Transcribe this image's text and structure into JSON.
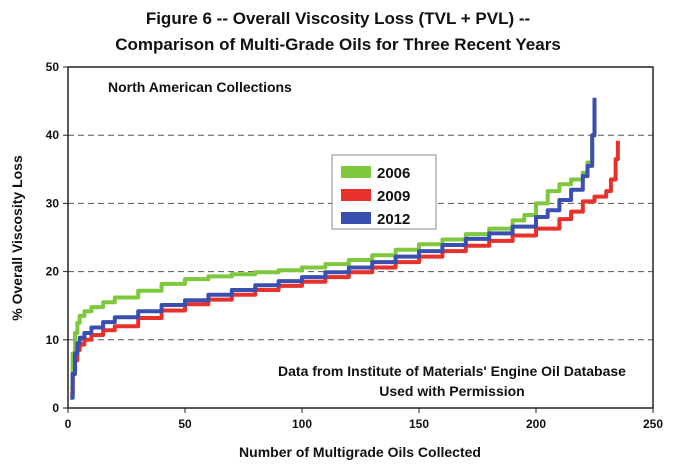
{
  "chart_data": {
    "type": "line",
    "title_lines": [
      "Figure 6 -- Overall Viscosity Loss (TVL + PVL) --",
      "Comparison of Multi-Grade Oils for Three Recent Years"
    ],
    "xlabel": "Number of Multigrade Oils Collected",
    "ylabel": "% Overall Viscosity Loss",
    "xlim": [
      0,
      250
    ],
    "ylim": [
      0,
      50
    ],
    "xticks": [
      0,
      50,
      100,
      150,
      200,
      250
    ],
    "yticks": [
      0,
      10,
      20,
      30,
      40,
      50
    ],
    "grid": "dashed horizontal at 10, 20, 30, 40",
    "legend_position": "center",
    "annotations": {
      "top_left": "North American Collections",
      "bottom_right_line1": "Data from Institute of Materials' Engine Oil Database",
      "bottom_right_line2": "Used with Permission"
    },
    "series": [
      {
        "name": "2006",
        "color": "#7dc83c",
        "x": [
          1,
          2,
          3,
          4,
          5,
          7,
          10,
          15,
          20,
          30,
          40,
          50,
          60,
          70,
          80,
          90,
          100,
          110,
          120,
          130,
          140,
          150,
          160,
          170,
          180,
          190,
          195,
          200,
          205,
          210,
          215,
          220,
          222,
          224,
          225
        ],
        "y": [
          3,
          8,
          11,
          12.5,
          13.5,
          14.2,
          14.8,
          15.5,
          16.2,
          17.2,
          18.2,
          18.9,
          19.3,
          19.6,
          19.9,
          20.2,
          20.6,
          21.1,
          21.7,
          22.4,
          23.2,
          24.0,
          24.7,
          25.5,
          26.3,
          27.5,
          28.3,
          30.0,
          31.8,
          32.8,
          33.5,
          34.5,
          36,
          40,
          45
        ]
      },
      {
        "name": "2009",
        "color": "#e8312b",
        "x": [
          1,
          2,
          3,
          4,
          5,
          7,
          10,
          15,
          20,
          30,
          40,
          50,
          60,
          70,
          80,
          90,
          100,
          110,
          120,
          130,
          140,
          150,
          160,
          170,
          180,
          190,
          200,
          210,
          215,
          220,
          225,
          230,
          232,
          234,
          235
        ],
        "y": [
          2,
          5,
          7,
          8.5,
          9.3,
          10,
          10.7,
          11.4,
          12.0,
          13.2,
          14.3,
          15.2,
          15.9,
          16.6,
          17.3,
          17.9,
          18.5,
          19.2,
          19.9,
          20.6,
          21.4,
          22.2,
          23.0,
          23.8,
          24.5,
          25.3,
          26.3,
          27.7,
          28.8,
          30.3,
          31.0,
          31.8,
          33.5,
          36.5,
          39.2
        ]
      },
      {
        "name": "2012",
        "color": "#3a4fb0",
        "x": [
          1,
          2,
          3,
          4,
          5,
          7,
          10,
          15,
          20,
          30,
          40,
          50,
          60,
          70,
          80,
          90,
          100,
          110,
          120,
          130,
          140,
          150,
          160,
          170,
          180,
          190,
          200,
          205,
          210,
          215,
          220,
          222,
          224,
          225
        ],
        "y": [
          1.5,
          5,
          8,
          9.5,
          10.3,
          11,
          11.8,
          12.6,
          13.3,
          14.2,
          15.1,
          15.8,
          16.6,
          17.3,
          18.0,
          18.6,
          19.2,
          19.9,
          20.6,
          21.4,
          22.2,
          23.0,
          23.9,
          24.8,
          25.6,
          26.6,
          28.0,
          29.0,
          30.5,
          32.0,
          34.0,
          35.5,
          40,
          45.5
        ]
      }
    ]
  }
}
